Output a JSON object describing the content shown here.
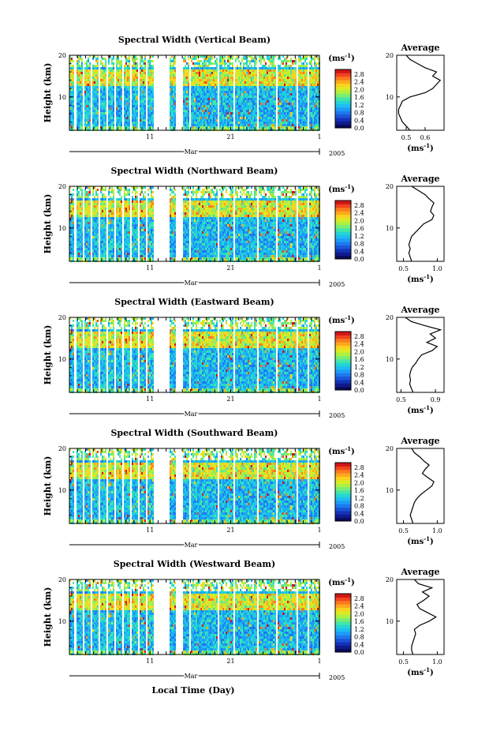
{
  "figure": {
    "xlabel": "Local Time (Day)"
  },
  "colorbar": {
    "ticks": [
      "0.0",
      "0.4",
      "0.8",
      "1.2",
      "1.6",
      "2.0",
      "2.4",
      "2.8"
    ],
    "unit_main": "(ms",
    "unit_exp": "-1",
    "unit_close": ")",
    "colors": [
      "#0a0a5a",
      "#101a8c",
      "#1433b8",
      "#1a55d8",
      "#1e78ee",
      "#1e9bf5",
      "#1dbdf0",
      "#23d5d5",
      "#45e6a6",
      "#7aee72",
      "#b0f040",
      "#dcea24",
      "#fbd21e",
      "#fea81e",
      "#fb7a1e",
      "#f0441e",
      "#d01616"
    ]
  },
  "avg_unit": {
    "main": "(ms",
    "exp": "-1",
    "close": ")"
  },
  "chart_data": [
    {
      "type": "heatmap",
      "title": "Spectral Width (Vertical Beam)",
      "ylabel": "Height (km)",
      "ylim": [
        2,
        20
      ],
      "y_ticks": [
        "20",
        "10"
      ],
      "x_ticks": [
        "11",
        "21",
        "1"
      ],
      "x_month": "Mar",
      "x_year": "2005",
      "colorbar_range": [
        0.0,
        2.8
      ],
      "profile": {
        "title": "Average",
        "xticks": [
          "0.5",
          "0.6"
        ],
        "xlim": [
          0.45,
          0.7
        ],
        "heights": [
          2,
          3,
          4,
          5,
          6,
          7,
          8,
          9,
          10,
          11,
          12,
          13,
          14,
          15,
          16,
          17,
          18,
          19,
          20
        ],
        "values": [
          0.52,
          0.5,
          0.48,
          0.47,
          0.46,
          0.46,
          0.47,
          0.48,
          0.52,
          0.6,
          0.64,
          0.66,
          0.68,
          0.64,
          0.66,
          0.6,
          0.56,
          0.52,
          0.5
        ]
      }
    },
    {
      "type": "heatmap",
      "title": "Spectral Width (Northward Beam)",
      "ylabel": "Height (km)",
      "ylim": [
        2,
        20
      ],
      "y_ticks": [
        "20",
        "10"
      ],
      "x_ticks": [
        "11",
        "21",
        "1"
      ],
      "x_month": "Mar",
      "x_year": "2005",
      "colorbar_range": [
        0.0,
        2.8
      ],
      "profile": {
        "title": "Average",
        "xticks": [
          "0.5",
          "1.0"
        ],
        "xlim": [
          0.4,
          1.1
        ],
        "heights": [
          2,
          3,
          4,
          5,
          6,
          7,
          8,
          9,
          10,
          11,
          12,
          13,
          14,
          15,
          16,
          17,
          18,
          19,
          20
        ],
        "values": [
          0.62,
          0.6,
          0.58,
          0.6,
          0.58,
          0.6,
          0.62,
          0.68,
          0.74,
          0.8,
          0.92,
          0.95,
          0.9,
          0.92,
          0.95,
          0.88,
          0.82,
          0.72,
          0.62
        ]
      }
    },
    {
      "type": "heatmap",
      "title": "Spectral Width (Eastward Beam)",
      "ylabel": "Height (km)",
      "ylim": [
        2,
        20
      ],
      "y_ticks": [
        "20",
        "10"
      ],
      "x_ticks": [
        "11",
        "21",
        "1"
      ],
      "x_month": "Mar",
      "x_year": "2005",
      "colorbar_range": [
        0.0,
        2.8
      ],
      "profile": {
        "title": "Average",
        "xticks": [
          "0.5",
          "0.9"
        ],
        "xlim": [
          0.45,
          1.0
        ],
        "heights": [
          2,
          3,
          4,
          5,
          6,
          7,
          8,
          9,
          10,
          11,
          12,
          13,
          14,
          15,
          16,
          17,
          18,
          19,
          20
        ],
        "values": [
          0.64,
          0.62,
          0.6,
          0.61,
          0.6,
          0.61,
          0.63,
          0.67,
          0.7,
          0.74,
          0.86,
          0.92,
          0.8,
          0.9,
          0.84,
          0.96,
          0.78,
          0.62,
          0.55
        ]
      }
    },
    {
      "type": "heatmap",
      "title": "Spectral Width (Southward Beam)",
      "ylabel": "Height (km)",
      "ylim": [
        2,
        20
      ],
      "y_ticks": [
        "20",
        "10"
      ],
      "x_ticks": [
        "11",
        "21",
        "1"
      ],
      "x_month": "Mar",
      "x_year": "2005",
      "colorbar_range": [
        0.0,
        2.8
      ],
      "profile": {
        "title": "Average",
        "xticks": [
          "0.5",
          "1.0"
        ],
        "xlim": [
          0.4,
          1.1
        ],
        "heights": [
          2,
          3,
          4,
          5,
          6,
          7,
          8,
          9,
          10,
          11,
          12,
          13,
          14,
          15,
          16,
          17,
          18,
          19,
          20
        ],
        "values": [
          0.64,
          0.62,
          0.6,
          0.62,
          0.64,
          0.66,
          0.7,
          0.76,
          0.84,
          0.92,
          0.95,
          0.86,
          0.78,
          0.82,
          0.88,
          0.8,
          0.74,
          0.66,
          0.62
        ]
      }
    },
    {
      "type": "heatmap",
      "title": "Spectral Width (Westward Beam)",
      "ylabel": "Height (km)",
      "ylim": [
        2,
        20
      ],
      "y_ticks": [
        "20",
        "10"
      ],
      "x_ticks": [
        "11",
        "21",
        "1"
      ],
      "x_month": "Mar",
      "x_year": "2005",
      "colorbar_range": [
        0.0,
        2.8
      ],
      "profile": {
        "title": "Average",
        "xticks": [
          "0.5",
          "1.0"
        ],
        "xlim": [
          0.4,
          1.1
        ],
        "heights": [
          2,
          3,
          4,
          5,
          6,
          7,
          8,
          9,
          10,
          11,
          12,
          13,
          14,
          15,
          16,
          17,
          18,
          19,
          20
        ],
        "values": [
          0.64,
          0.62,
          0.62,
          0.64,
          0.66,
          0.68,
          0.66,
          0.74,
          0.88,
          0.98,
          0.86,
          0.74,
          0.7,
          0.8,
          0.88,
          0.78,
          0.92,
          0.72,
          0.66
        ]
      }
    }
  ]
}
